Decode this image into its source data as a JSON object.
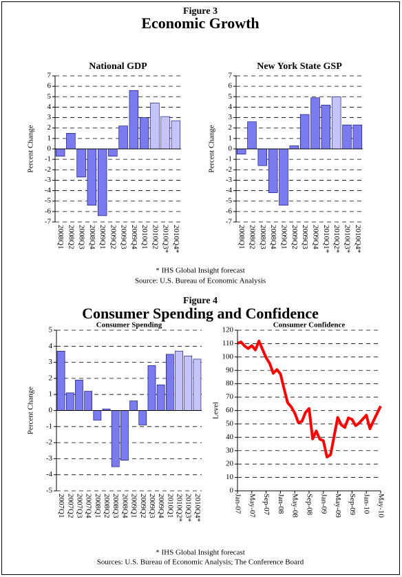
{
  "figure3": {
    "label": "Figure 3",
    "title": "Economic Growth",
    "footnote": "* IHS Global Insight forecast",
    "source": "Source:  U.S. Bureau of Economic Analysis"
  },
  "figure4": {
    "label": "Figure 4",
    "title": "Consumer Spending and Confidence",
    "footnote": "* IHS Global Insight forecast",
    "source": "Sources:  U.S. Bureau of Economic Analysis; The Conference Board"
  },
  "chart_data": [
    {
      "type": "bar",
      "title": "National GDP",
      "ylabel": "Percent Change",
      "categories": [
        "2008Q1",
        "2008Q2",
        "2008Q3",
        "2008Q4",
        "2009Q1",
        "2009Q2",
        "2009Q3",
        "2009Q4",
        "2010Q1",
        "2010Q2",
        "2010Q3*",
        "2010Q4*"
      ],
      "values": [
        -0.7,
        1.5,
        -2.7,
        -5.4,
        -6.4,
        -0.7,
        2.2,
        5.6,
        3.0,
        4.4,
        3.1,
        2.7
      ],
      "colors": [
        "#7b7bf0",
        "#7b7bf0",
        "#7b7bf0",
        "#7b7bf0",
        "#7b7bf0",
        "#7b7bf0",
        "#7b7bf0",
        "#7b7bf0",
        "#7b7bf0",
        "#c4c4fb",
        "#c4c4fb",
        "#c4c4fb"
      ],
      "ylim": [
        -7,
        7
      ],
      "yticks": [
        -7,
        -6,
        -5,
        -4,
        -3,
        -2,
        -1,
        0,
        1,
        2,
        3,
        4,
        5,
        6,
        7
      ],
      "grid": true
    },
    {
      "type": "bar",
      "title": "New York State GSP",
      "ylabel": "Percent Change",
      "categories": [
        "2008Q1",
        "2008Q2",
        "2008Q3",
        "2008Q4",
        "2009Q1",
        "2009Q2",
        "2009Q3",
        "2009Q4",
        "2010Q1*",
        "2010Q2*",
        "2010Q3*",
        "2010Q4*"
      ],
      "values": [
        -0.5,
        2.6,
        -1.6,
        -4.2,
        -5.4,
        0.3,
        3.3,
        4.9,
        4.2,
        5.0,
        2.3,
        2.3
      ],
      "colors": [
        "#7b7bf0",
        "#7b7bf0",
        "#7b7bf0",
        "#7b7bf0",
        "#7b7bf0",
        "#7b7bf0",
        "#7b7bf0",
        "#7b7bf0",
        "#7b7bf0",
        "#c4c4fb",
        "#7b7bf0",
        "#7b7bf0"
      ],
      "ylim": [
        -7,
        7
      ],
      "yticks": [
        -7,
        -6,
        -5,
        -4,
        -3,
        -2,
        -1,
        0,
        1,
        2,
        3,
        4,
        5,
        6,
        7
      ],
      "grid": true
    },
    {
      "type": "bar",
      "title": "Consumer Spending",
      "ylabel": "Percent Change",
      "categories": [
        "2007Q1",
        "2007Q2",
        "2007Q3",
        "2007Q4",
        "2008Q1",
        "2008Q2",
        "2008Q3",
        "2008Q4",
        "2009Q1",
        "2009Q2",
        "2009Q3",
        "2009Q4",
        "2010Q1",
        "2010Q2*",
        "2010Q3*",
        "2010Q4*"
      ],
      "values": [
        3.7,
        1.1,
        1.9,
        1.2,
        -0.6,
        0.1,
        -3.5,
        -3.1,
        0.6,
        -0.9,
        2.8,
        1.6,
        3.5,
        3.7,
        3.4,
        3.2
      ],
      "colors": [
        "#7b7bf0",
        "#7b7bf0",
        "#7b7bf0",
        "#7b7bf0",
        "#7b7bf0",
        "#7b7bf0",
        "#7b7bf0",
        "#7b7bf0",
        "#7b7bf0",
        "#7b7bf0",
        "#7b7bf0",
        "#7b7bf0",
        "#7b7bf0",
        "#c4c4fb",
        "#c4c4fb",
        "#c4c4fb"
      ],
      "ylim": [
        -5,
        5
      ],
      "yticks": [
        -5,
        -4,
        -3,
        -2,
        -1,
        0,
        1,
        2,
        3,
        4,
        5
      ],
      "grid": true
    },
    {
      "type": "line",
      "title": "Consumer Confidence",
      "ylabel": "Level",
      "color": "#ff0000",
      "categories": [
        "Jan-07",
        null,
        null,
        null,
        "May-07",
        null,
        null,
        null,
        "Sep-07",
        null,
        null,
        null,
        "Jan-08",
        null,
        null,
        null,
        "May-08",
        null,
        null,
        null,
        "Sep-08",
        null,
        null,
        null,
        "Jan-09",
        null,
        null,
        null,
        "May-09",
        null,
        null,
        null,
        "Sep-09",
        null,
        null,
        null,
        "Jan-10",
        null,
        null,
        null,
        "May-10"
      ],
      "values": [
        110.2,
        111.2,
        108.2,
        106.3,
        108.5,
        105.3,
        111.9,
        105.6,
        99.5,
        95.2,
        87.8,
        90.6,
        87.3,
        76.4,
        65.9,
        62.8,
        58.1,
        51.0,
        51.9,
        58.5,
        61.4,
        38.8,
        44.7,
        38.6,
        37.4,
        25.3,
        26.9,
        40.8,
        54.8,
        49.3,
        47.4,
        54.5,
        53.4,
        48.7,
        50.6,
        53.6,
        56.5,
        46.4,
        52.3,
        57.9,
        63.3
      ],
      "ylim": [
        0,
        120
      ],
      "yticks": [
        0,
        10,
        20,
        30,
        40,
        50,
        60,
        70,
        80,
        90,
        100,
        110,
        120
      ],
      "grid": true
    }
  ]
}
